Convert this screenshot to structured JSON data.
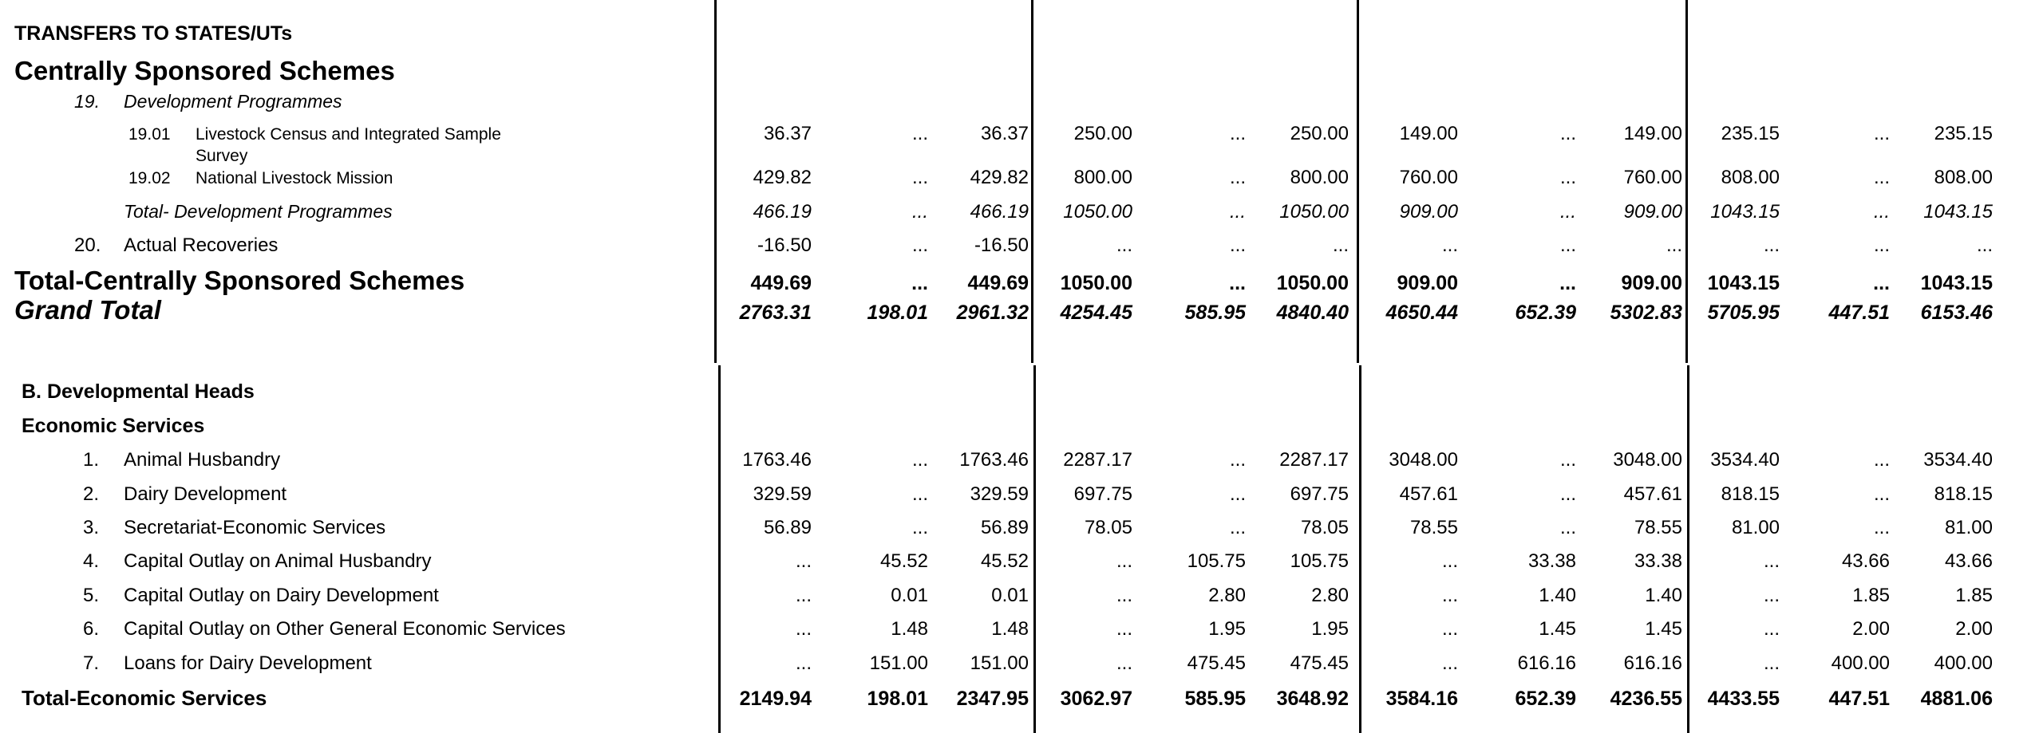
{
  "document": {
    "colors": {
      "text": "#000000",
      "background": "#ffffff",
      "rule": "#000000"
    },
    "section_a": {
      "rows": [
        {
          "style": "caps",
          "label": "TRANSFERS TO STATES/UTs",
          "values": []
        },
        {
          "style": "big",
          "label": "Centrally Sponsored Schemes",
          "values": []
        },
        {
          "style": "group",
          "num": "19.",
          "label": "Development Programmes",
          "values": []
        },
        {
          "style": "sub",
          "num": "19.01",
          "label": "Livestock Census and Integrated Sample Survey",
          "values": [
            "36.37",
            "...",
            "36.37",
            "250.00",
            "...",
            "250.00",
            "149.00",
            "...",
            "149.00",
            "235.15",
            "...",
            "235.15"
          ]
        },
        {
          "style": "sub",
          "num": "19.02",
          "label": "National Livestock Mission",
          "values": [
            "429.82",
            "...",
            "429.82",
            "800.00",
            "...",
            "800.00",
            "760.00",
            "...",
            "760.00",
            "808.00",
            "...",
            "808.00"
          ]
        },
        {
          "style": "total-italic",
          "label": "Total- Development Programmes",
          "values": [
            "466.19",
            "...",
            "466.19",
            "1050.00",
            "...",
            "1050.00",
            "909.00",
            "...",
            "909.00",
            "1043.15",
            "...",
            "1043.15"
          ]
        },
        {
          "style": "item",
          "num": "20.",
          "label": "Actual Recoveries",
          "values": [
            "-16.50",
            "...",
            "-16.50",
            "...",
            "...",
            "...",
            "...",
            "...",
            "...",
            "...",
            "...",
            "..."
          ]
        },
        {
          "style": "total-big",
          "label": "Total-Centrally Sponsored Schemes",
          "values": [
            "449.69",
            "...",
            "449.69",
            "1050.00",
            "...",
            "1050.00",
            "909.00",
            "...",
            "909.00",
            "1043.15",
            "...",
            "1043.15"
          ]
        },
        {
          "style": "grand",
          "label": "Grand Total",
          "values": [
            "2763.31",
            "198.01",
            "2961.32",
            "4254.45",
            "585.95",
            "4840.40",
            "4650.44",
            "652.39",
            "5302.83",
            "5705.95",
            "447.51",
            "6153.46"
          ]
        }
      ]
    },
    "section_b": {
      "rows": [
        {
          "style": "bold-head",
          "label": "B. Developmental Heads",
          "values": []
        },
        {
          "style": "bold-head",
          "label": "Economic Services",
          "values": []
        },
        {
          "style": "item-n",
          "num": "1.",
          "label": "Animal Husbandry",
          "values": [
            "1763.46",
            "...",
            "1763.46",
            "2287.17",
            "...",
            "2287.17",
            "3048.00",
            "...",
            "3048.00",
            "3534.40",
            "...",
            "3534.40"
          ]
        },
        {
          "style": "item-n",
          "num": "2.",
          "label": "Dairy Development",
          "values": [
            "329.59",
            "...",
            "329.59",
            "697.75",
            "...",
            "697.75",
            "457.61",
            "...",
            "457.61",
            "818.15",
            "...",
            "818.15"
          ]
        },
        {
          "style": "item-n",
          "num": "3.",
          "label": "Secretariat-Economic Services",
          "values": [
            "56.89",
            "...",
            "56.89",
            "78.05",
            "...",
            "78.05",
            "78.55",
            "...",
            "78.55",
            "81.00",
            "...",
            "81.00"
          ]
        },
        {
          "style": "item-n",
          "num": "4.",
          "label": "Capital Outlay on Animal Husbandry",
          "values": [
            "...",
            "45.52",
            "45.52",
            "...",
            "105.75",
            "105.75",
            "...",
            "33.38",
            "33.38",
            "...",
            "43.66",
            "43.66"
          ]
        },
        {
          "style": "item-n",
          "num": "5.",
          "label": "Capital Outlay on Dairy Development",
          "values": [
            "...",
            "0.01",
            "0.01",
            "...",
            "2.80",
            "2.80",
            "...",
            "1.40",
            "1.40",
            "...",
            "1.85",
            "1.85"
          ]
        },
        {
          "style": "item-n",
          "num": "6.",
          "label": "Capital Outlay on Other General Economic Services",
          "values": [
            "...",
            "1.48",
            "1.48",
            "...",
            "1.95",
            "1.95",
            "...",
            "1.45",
            "1.45",
            "...",
            "2.00",
            "2.00"
          ]
        },
        {
          "style": "item-n",
          "num": "7.",
          "label": "Loans for Dairy Development",
          "values": [
            "...",
            "151.00",
            "151.00",
            "...",
            "475.45",
            "475.45",
            "...",
            "616.16",
            "616.16",
            "...",
            "400.00",
            "400.00"
          ]
        },
        {
          "style": "total-bold",
          "label": "Total-Economic Services",
          "values": [
            "2149.94",
            "198.01",
            "2347.95",
            "3062.97",
            "585.95",
            "3648.92",
            "3584.16",
            "652.39",
            "4236.55",
            "4433.55",
            "447.51",
            "4881.06"
          ]
        }
      ]
    }
  }
}
